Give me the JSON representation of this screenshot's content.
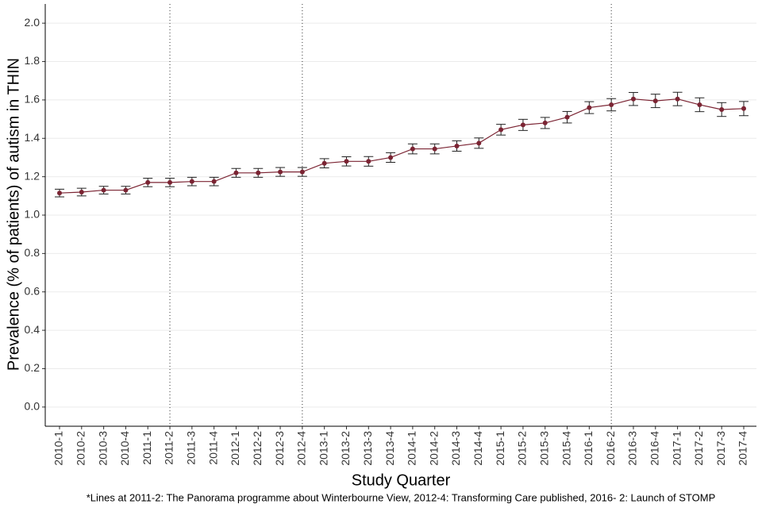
{
  "chart_data": {
    "type": "line",
    "x_label": "Study Quarter",
    "y_label": "Prevalence (% of patients) of autism in THIN",
    "footnote": "*Lines at 2011-2: The Panorama programme about Winterbourne View, 2012-4: Transforming Care published, 2016- 2: Launch of STOMP",
    "categories": [
      "2010-1",
      "2010-2",
      "2010-3",
      "2010-4",
      "2011-1",
      "2011-2",
      "2011-3",
      "2011-4",
      "2012-1",
      "2012-2",
      "2012-3",
      "2012-4",
      "2013-1",
      "2013-2",
      "2013-3",
      "2013-4",
      "2014-1",
      "2014-2",
      "2014-3",
      "2014-4",
      "2015-1",
      "2015-2",
      "2015-3",
      "2015-4",
      "2016-1",
      "2016-2",
      "2016-3",
      "2016-4",
      "2017-1",
      "2017-2",
      "2017-3",
      "2017-4"
    ],
    "series": [
      {
        "color": "#7b2433",
        "values": [
          1.115,
          1.12,
          1.13,
          1.13,
          1.17,
          1.17,
          1.175,
          1.175,
          1.22,
          1.22,
          1.225,
          1.225,
          1.27,
          1.28,
          1.28,
          1.3,
          1.345,
          1.345,
          1.36,
          1.375,
          1.445,
          1.47,
          1.48,
          1.51,
          1.56,
          1.575,
          1.605,
          1.595,
          1.605,
          1.575,
          1.55,
          1.555
        ],
        "errors": [
          0.02,
          0.02,
          0.02,
          0.02,
          0.022,
          0.022,
          0.022,
          0.022,
          0.023,
          0.023,
          0.023,
          0.023,
          0.024,
          0.024,
          0.025,
          0.025,
          0.026,
          0.026,
          0.027,
          0.027,
          0.028,
          0.029,
          0.029,
          0.03,
          0.031,
          0.032,
          0.034,
          0.035,
          0.035,
          0.036,
          0.036,
          0.037
        ]
      }
    ],
    "reference_lines": [
      "2011-2",
      "2012-4",
      "2016-2"
    ],
    "ylim": [
      -0.1,
      2.1
    ],
    "yticks": [
      {
        "value": 0,
        "label": "0.0"
      },
      0.2,
      0.4,
      0.6,
      0.8,
      {
        "value": 1,
        "label": "1.0"
      },
      1.2,
      1.4,
      1.6,
      1.8,
      {
        "value": 2,
        "label": "2.0"
      }
    ],
    "grid": true
  }
}
